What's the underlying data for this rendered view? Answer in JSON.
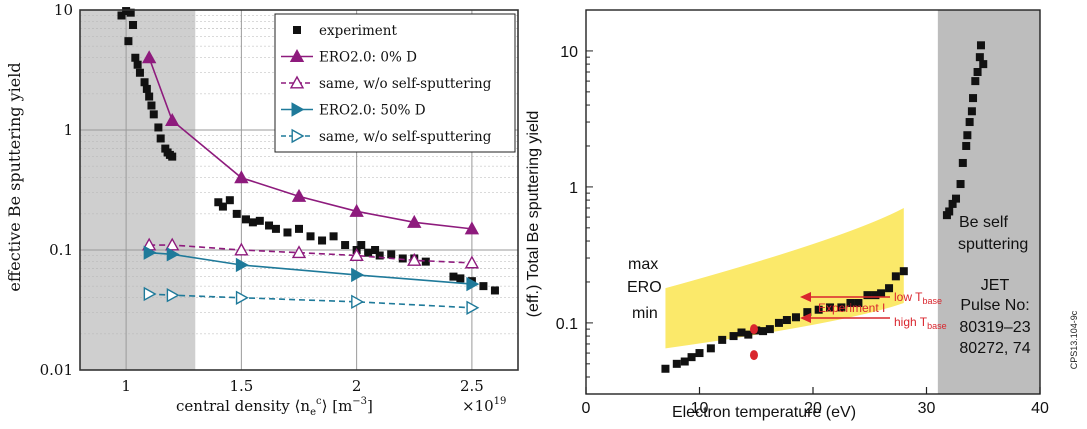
{
  "chart_data": [
    {
      "type": "line",
      "ylabel": "effective Be sputtering yield",
      "xlabel": "central density ⟨n",
      "xlabel_sub": "e",
      "xlabel_sup": "c",
      "xlabel_tail": "⟩  [m",
      "xlabel_unit_sup": "−3",
      "xlabel_close": "]",
      "x_multiplier": "×10",
      "x_multiplier_exp": "19",
      "xlim": [
        0.8,
        2.7
      ],
      "ylim": [
        0.01,
        10
      ],
      "yscale": "log",
      "x_ticks": [
        "1",
        "1.5",
        "2",
        "2.5"
      ],
      "y_ticks": [
        "0.01",
        "0.1",
        "1",
        "10"
      ],
      "grid": true,
      "shaded_region": [
        0.8,
        1.3
      ],
      "legend_position": "top-right",
      "series": [
        {
          "name": "experiment",
          "marker": "square",
          "color": "#111111",
          "line": "none",
          "x": [
            0.98,
            1.0,
            1.02,
            1.03,
            1.01,
            1.04,
            1.05,
            1.06,
            1.08,
            1.09,
            1.1,
            1.11,
            1.12,
            1.14,
            1.15,
            1.17,
            1.18,
            1.19,
            1.2,
            1.4,
            1.42,
            1.45,
            1.48,
            1.52,
            1.55,
            1.58,
            1.62,
            1.65,
            1.7,
            1.75,
            1.8,
            1.85,
            1.9,
            1.95,
            2.0,
            2.02,
            2.05,
            2.08,
            2.1,
            2.15,
            2.2,
            2.25,
            2.3,
            2.42,
            2.45,
            2.5,
            2.55,
            2.6
          ],
          "y": [
            9.0,
            9.8,
            9.5,
            7.5,
            5.5,
            4.0,
            3.5,
            3.0,
            2.5,
            2.2,
            1.9,
            1.6,
            1.35,
            1.05,
            0.85,
            0.7,
            0.65,
            0.62,
            0.6,
            0.25,
            0.23,
            0.26,
            0.2,
            0.18,
            0.17,
            0.175,
            0.16,
            0.15,
            0.14,
            0.15,
            0.13,
            0.12,
            0.13,
            0.11,
            0.1,
            0.11,
            0.095,
            0.1,
            0.09,
            0.092,
            0.085,
            0.085,
            0.08,
            0.06,
            0.058,
            0.055,
            0.05,
            0.046
          ]
        },
        {
          "name": "ERO2.0:    0% D",
          "marker": "triangle-up",
          "filled": true,
          "color": "#8e1b7d",
          "dash": false,
          "x": [
            1.1,
            1.2,
            1.5,
            1.75,
            2.0,
            2.25,
            2.5
          ],
          "y": [
            4.0,
            1.2,
            0.4,
            0.28,
            0.21,
            0.17,
            0.15
          ]
        },
        {
          "name": "same, w/o self-sputtering",
          "marker": "triangle-up",
          "filled": false,
          "color": "#8e1b7d",
          "dash": true,
          "x": [
            1.1,
            1.2,
            1.5,
            1.75,
            2.0,
            2.25,
            2.5
          ],
          "y": [
            0.11,
            0.11,
            0.1,
            0.095,
            0.09,
            0.082,
            0.078
          ]
        },
        {
          "name": "ERO2.0:  50% D",
          "marker": "triangle-right",
          "filled": true,
          "color": "#1f7a9a",
          "dash": false,
          "x": [
            1.1,
            1.2,
            1.5,
            2.0,
            2.5
          ],
          "y": [
            0.095,
            0.092,
            0.075,
            0.062,
            0.052
          ]
        },
        {
          "name": "same, w/o self-sputtering",
          "marker": "triangle-right",
          "filled": false,
          "color": "#1f7a9a",
          "dash": true,
          "x": [
            1.1,
            1.2,
            1.5,
            2.0,
            2.5
          ],
          "y": [
            0.043,
            0.042,
            0.04,
            0.037,
            0.033
          ]
        }
      ]
    },
    {
      "type": "scatter",
      "ylabel": "(eff.) Total Be sputtering yield",
      "xlabel": "Electron temperature (eV)",
      "xlim": [
        0,
        40
      ],
      "ylim": [
        0.03,
        20
      ],
      "yscale": "log",
      "x_ticks": [
        "0",
        "10",
        "20",
        "30",
        "40"
      ],
      "y_ticks": [
        "0.1",
        "1",
        "10"
      ],
      "shaded_region": [
        31,
        40
      ],
      "ero_band": {
        "x": [
          7,
          28
        ],
        "max": [
          0.18,
          0.7
        ],
        "min": [
          0.065,
          0.14
        ]
      },
      "series": [
        {
          "marker": "square",
          "color": "#111111",
          "x": [
            7,
            8,
            8.7,
            9.3,
            10,
            11,
            12,
            13,
            13.7,
            14.3,
            15,
            15.6,
            16.2,
            17,
            17.7,
            18.5,
            19.5,
            20.5,
            21.5,
            22.5,
            23.3,
            24,
            24.8,
            25.5,
            26,
            26.7,
            27.3,
            28
          ],
          "y": [
            0.046,
            0.05,
            0.052,
            0.056,
            0.06,
            0.065,
            0.075,
            0.08,
            0.085,
            0.082,
            0.088,
            0.087,
            0.09,
            0.1,
            0.105,
            0.11,
            0.12,
            0.125,
            0.13,
            0.13,
            0.14,
            0.14,
            0.16,
            0.16,
            0.165,
            0.18,
            0.22,
            0.24
          ]
        },
        {
          "marker": "square",
          "color": "#111111",
          "x": [
            31.8,
            32.0,
            32.3,
            32.6,
            33.0,
            33.2,
            33.5,
            33.6,
            33.8,
            34.0,
            34.1,
            34.3,
            34.5,
            34.7,
            34.8,
            35.0
          ],
          "y": [
            0.62,
            0.66,
            0.75,
            0.82,
            1.05,
            1.5,
            2.0,
            2.4,
            3.0,
            3.6,
            4.5,
            6.0,
            7.0,
            9.0,
            11.0,
            8.0
          ]
        },
        {
          "marker": "circle",
          "color": "#d9262e",
          "x": [
            14.8,
            14.8
          ],
          "y": [
            0.09,
            0.058
          ]
        }
      ],
      "annotations": {
        "max": "max",
        "ero": "ERO",
        "min": "min",
        "low_t": "low T",
        "low_t_sub": "base",
        "high_t": "high T",
        "high_t_sub": "base",
        "experiment": "Experiment I",
        "self_line1": "Be self",
        "self_line2": "sputtering",
        "jet_line1": "JET",
        "jet_line2": "Pulse No:",
        "jet_line3": "80319–23",
        "jet_line4": "80272, 74",
        "code": "CPS13.104-9c"
      }
    }
  ]
}
